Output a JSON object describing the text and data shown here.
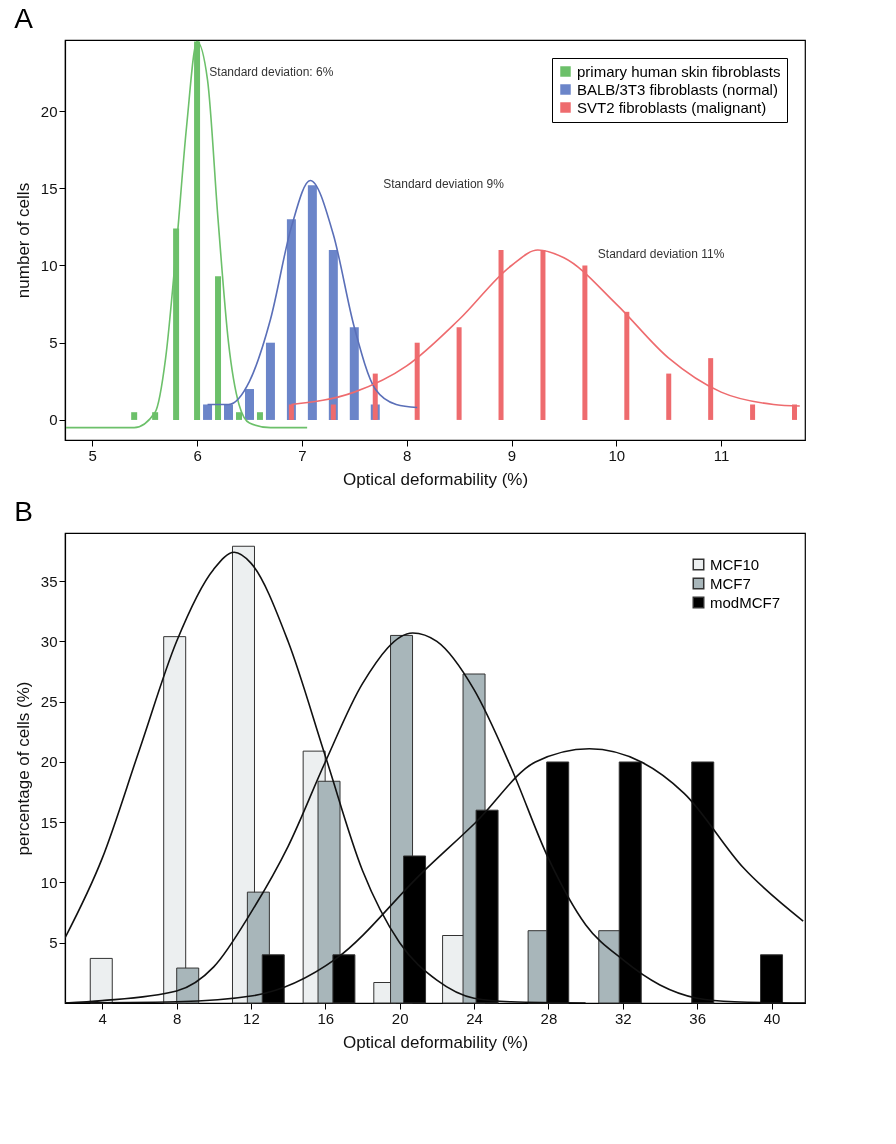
{
  "chart_data": [
    {
      "type": "bar",
      "title": "A",
      "xlabel": "Optical deformability (%)",
      "ylabel": "number of cells",
      "xlim": [
        4.74,
        11.8
      ],
      "ylim": [
        -1.3,
        24.6
      ],
      "xticks": [
        5,
        6,
        7,
        8,
        9,
        10,
        11
      ],
      "yticks": [
        0,
        5,
        10,
        15,
        20
      ],
      "legend": "top right",
      "annotations": [
        "Standard deviation: 6%",
        "Standard deviation 9%",
        "Standard deviation 11%"
      ],
      "series": [
        {
          "name": "primary human skin fibroblasts",
          "color": "#6cc06a",
          "x": [
            5.4,
            5.6,
            5.8,
            6.0,
            6.2,
            6.4,
            6.6
          ],
          "values": [
            0.5,
            0.5,
            12.4,
            24.5,
            9.3,
            0.5,
            0.5
          ]
        },
        {
          "name": "BALB/3T3 fibroblasts (normal)",
          "color": "#6b85c9",
          "x": [
            6.1,
            6.3,
            6.5,
            6.7,
            6.9,
            7.1,
            7.3,
            7.5,
            7.7
          ],
          "values": [
            1,
            1,
            2,
            5,
            13,
            15.2,
            11,
            6,
            1
          ]
        },
        {
          "name": "SVT2 fibroblasts (malignant)",
          "color": "#ee6b6e",
          "x": [
            6.9,
            7.3,
            7.7,
            8.1,
            8.5,
            8.9,
            9.3,
            9.7,
            10.1,
            10.5,
            10.9,
            11.3,
            11.7
          ],
          "values": [
            1,
            1,
            3,
            5,
            6,
            11,
            11,
            10,
            7,
            3,
            4,
            1,
            1
          ]
        },
        {
          "type": "line",
          "color": "#6cc06a",
          "x": [
            4.75,
            5.4,
            5.6,
            5.7,
            5.8,
            5.9,
            6.0,
            6.1,
            6.2,
            6.3,
            6.4,
            6.5,
            6.7,
            7.05
          ],
          "values": [
            -0.5,
            -0.5,
            0.5,
            4,
            11,
            19,
            24.5,
            22,
            13,
            5,
            1,
            -0.2,
            -0.5,
            -0.5
          ]
        },
        {
          "type": "line",
          "color": "#5a6fb8",
          "x": [
            6.1,
            6.3,
            6.5,
            6.7,
            6.9,
            7.08,
            7.3,
            7.5,
            7.7,
            7.9,
            8.1
          ],
          "values": [
            1,
            1,
            2.5,
            6.5,
            12.5,
            15.5,
            12,
            6,
            2,
            1,
            0.8
          ]
        },
        {
          "type": "line",
          "color": "#ee6b6e",
          "x": [
            6.9,
            7.5,
            8.0,
            8.5,
            9.0,
            9.25,
            9.5,
            10.0,
            10.5,
            11.0,
            11.5,
            11.75
          ],
          "values": [
            1,
            1.8,
            3.5,
            6.5,
            10,
            11,
            10.5,
            7.5,
            4,
            1.8,
            1,
            0.9
          ]
        }
      ]
    },
    {
      "type": "bar",
      "title": "B",
      "xlabel": "Optical deformability (%)",
      "ylabel": "percentage of cells (%)",
      "xlim": [
        2,
        41.8
      ],
      "ylim": [
        0,
        39
      ],
      "xticks": [
        4,
        8,
        12,
        16,
        20,
        24,
        28,
        32,
        36,
        40
      ],
      "yticks": [
        5,
        10,
        15,
        20,
        25,
        30,
        35
      ],
      "legend": "top right",
      "series": [
        {
          "name": "MCF10",
          "color": "#eceff0",
          "x": [
            3.95,
            7.9,
            11.6,
            15.4,
            19.2,
            22.9
          ],
          "values": [
            3.7,
            30.4,
            37.9,
            20.9,
            1.7,
            5.6
          ]
        },
        {
          "name": "MCF7",
          "color": "#a8b6ba",
          "x": [
            8.6,
            12.4,
            16.2,
            20.1,
            24.0,
            27.5,
            31.3
          ],
          "values": [
            2.9,
            9.2,
            18.4,
            30.5,
            27.3,
            6.0,
            6.0
          ]
        },
        {
          "name": "modMCF7",
          "color": "#000000",
          "x": [
            13.2,
            17.0,
            20.8,
            24.7,
            28.5,
            32.4,
            36.3,
            40.0
          ],
          "values": [
            4,
            4,
            12.2,
            16,
            20,
            20,
            20,
            4
          ]
        },
        {
          "type": "line",
          "color": "#111111",
          "x": [
            2,
            4,
            6,
            8,
            10,
            11.1,
            12,
            14,
            16,
            18,
            20,
            22,
            24,
            26,
            30
          ],
          "values": [
            5.4,
            12,
            21,
            30,
            36,
            37.4,
            36.5,
            30,
            20.5,
            11,
            5,
            1.9,
            0.4,
            0.1,
            0
          ]
        },
        {
          "type": "line",
          "color": "#111111",
          "x": [
            2,
            4,
            8,
            10,
            12,
            14,
            16,
            18,
            20.7,
            22,
            24,
            26,
            28,
            30,
            32,
            34,
            36,
            38,
            41.8
          ],
          "values": [
            0,
            0.2,
            1,
            3,
            7.5,
            13,
            20,
            26.5,
            30.7,
            30,
            26,
            19.5,
            12,
            6.5,
            3.6,
            1.5,
            0.4,
            0.1,
            0
          ]
        },
        {
          "type": "line",
          "color": "#111111",
          "x": [
            2,
            8,
            12.1,
            16.6,
            21.2,
            24.1,
            27.3,
            30.2,
            33,
            35.3,
            38.5,
            41.7
          ],
          "values": [
            0,
            0.1,
            0.6,
            3.7,
            10.8,
            15,
            20,
            21.1,
            20,
            17.4,
            11.2,
            6.8
          ]
        }
      ]
    }
  ]
}
